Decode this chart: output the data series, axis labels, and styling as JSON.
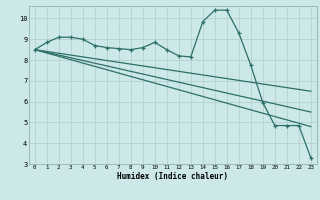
{
  "xlabel": "Humidex (Indice chaleur)",
  "bg_color": "#cce8e8",
  "line_color": "#2d7068",
  "grid_color": "#b0cccc",
  "xlim": [
    -0.5,
    23.5
  ],
  "ylim": [
    3,
    10.6
  ],
  "yticks": [
    3,
    4,
    5,
    6,
    7,
    8,
    9,
    10
  ],
  "xticks": [
    0,
    1,
    2,
    3,
    4,
    5,
    6,
    7,
    8,
    9,
    10,
    11,
    12,
    13,
    14,
    15,
    16,
    17,
    18,
    19,
    20,
    21,
    22,
    23
  ],
  "line1_x": [
    0,
    1,
    2,
    3,
    4,
    5,
    6,
    7,
    8,
    9,
    10,
    11,
    12,
    13,
    14,
    15,
    16,
    17,
    18,
    19,
    20,
    21,
    22,
    23
  ],
  "line1_y": [
    8.5,
    8.85,
    9.1,
    9.1,
    9.0,
    8.7,
    8.6,
    8.55,
    8.5,
    8.6,
    8.85,
    8.5,
    8.2,
    8.15,
    9.85,
    10.4,
    10.4,
    9.3,
    7.75,
    5.95,
    4.85,
    4.85,
    4.85,
    3.3
  ],
  "line2_x": [
    0,
    23
  ],
  "line2_y": [
    8.5,
    6.5
  ],
  "line3_x": [
    0,
    23
  ],
  "line3_y": [
    8.5,
    5.5
  ],
  "line4_x": [
    0,
    23
  ],
  "line4_y": [
    8.5,
    4.8
  ]
}
